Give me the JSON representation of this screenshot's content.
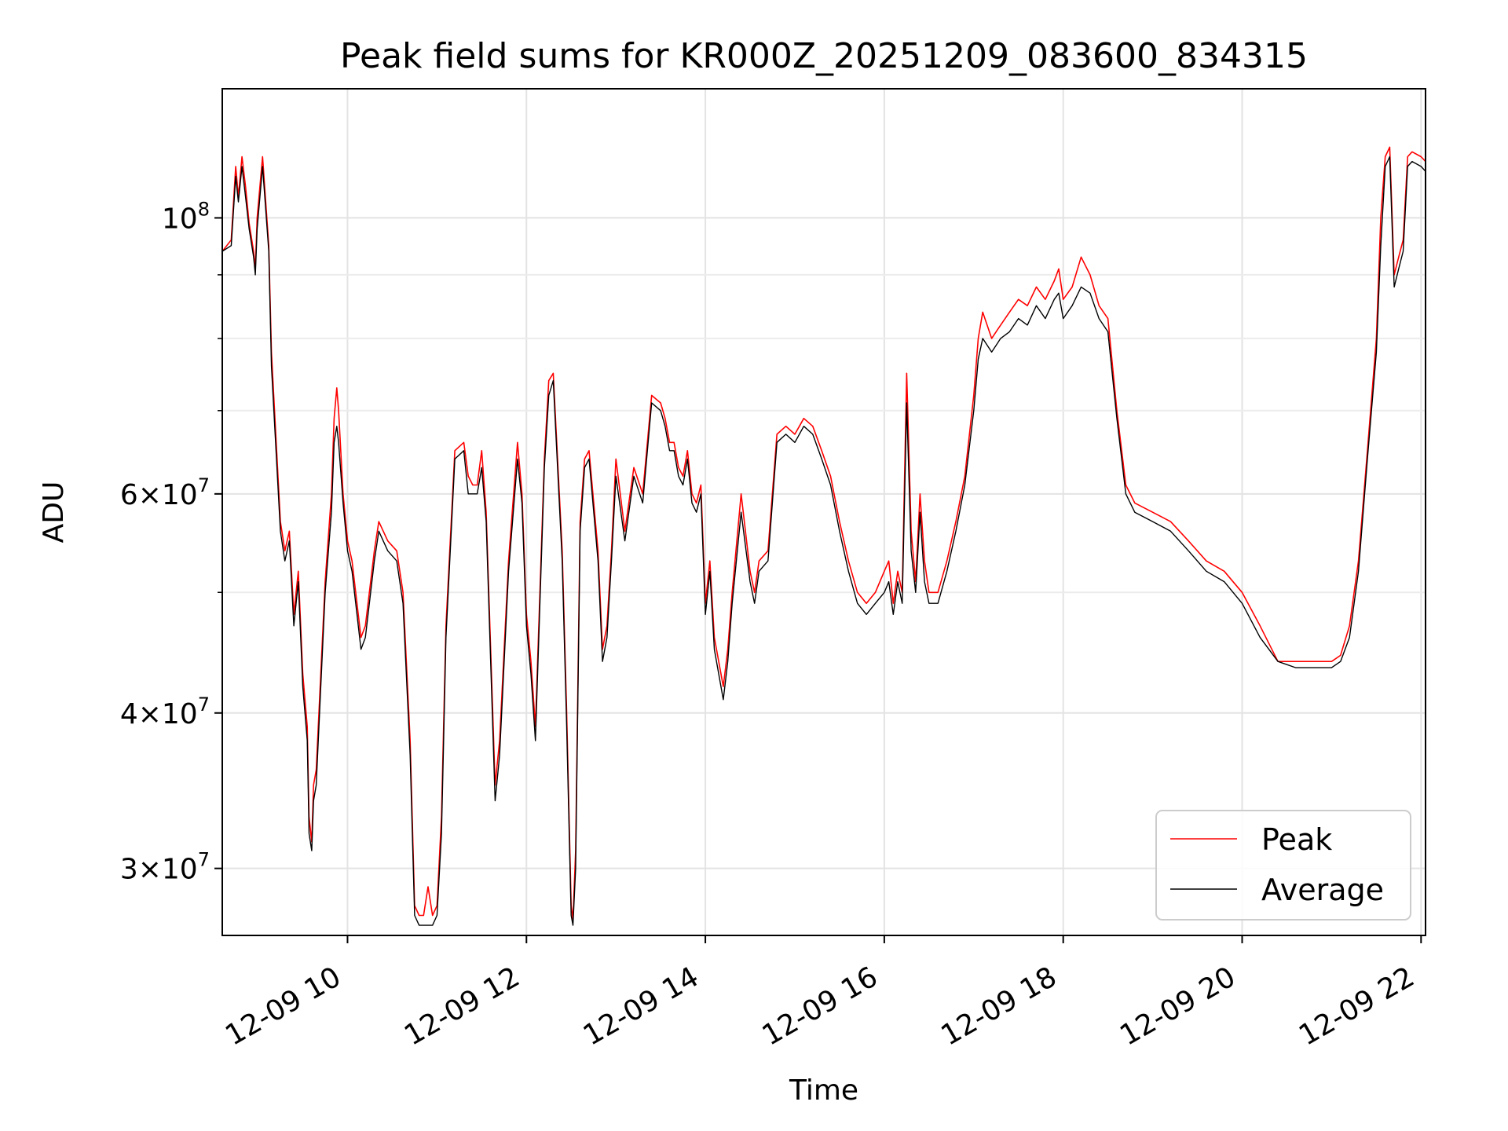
{
  "chart_data": {
    "type": "line",
    "title": "Peak field sums for KR000Z_20251209_083600_834315",
    "xlabel": "Time",
    "ylabel": "ADU",
    "x_unit": "hours (of day 2025-12-09)",
    "xlim": [
      8.6,
      22.05
    ],
    "ylim": [
      26500000,
      127000000
    ],
    "y_scale": "log",
    "grid": true,
    "legend_position": "lower right",
    "x_ticks": [
      {
        "value": 10,
        "label": "12-09 10"
      },
      {
        "value": 12,
        "label": "12-09 12"
      },
      {
        "value": 14,
        "label": "12-09 14"
      },
      {
        "value": 16,
        "label": "12-09 16"
      },
      {
        "value": 18,
        "label": "12-09 18"
      },
      {
        "value": 20,
        "label": "12-09 20"
      },
      {
        "value": 22,
        "label": "12-09 22"
      }
    ],
    "y_major_ticks": [
      {
        "value": 30000000,
        "base": "3",
        "exp": "7"
      },
      {
        "value": 40000000,
        "base": "4",
        "exp": "7"
      },
      {
        "value": 60000000,
        "base": "6",
        "exp": "7"
      },
      {
        "value": 100000000,
        "base": "",
        "exp": "8"
      }
    ],
    "y_minor_grid": [
      50000000,
      70000000,
      80000000,
      90000000
    ],
    "series": [
      {
        "name": "Peak",
        "color": "#ff0000",
        "x": [
          8.6,
          8.7,
          8.75,
          8.78,
          8.82,
          8.86,
          8.9,
          8.95,
          8.97,
          8.99,
          9.05,
          9.12,
          9.15,
          9.25,
          9.3,
          9.35,
          9.4,
          9.45,
          9.5,
          9.55,
          9.57,
          9.6,
          9.62,
          9.65,
          9.75,
          9.82,
          9.85,
          9.88,
          9.9,
          9.95,
          10.0,
          10.05,
          10.15,
          10.2,
          10.3,
          10.35,
          10.45,
          10.55,
          10.62,
          10.7,
          10.75,
          10.8,
          10.85,
          10.9,
          10.95,
          11.0,
          11.05,
          11.1,
          11.2,
          11.3,
          11.35,
          11.4,
          11.45,
          11.5,
          11.55,
          11.6,
          11.65,
          11.7,
          11.8,
          11.9,
          11.95,
          12.0,
          12.05,
          12.1,
          12.2,
          12.25,
          12.3,
          12.4,
          12.45,
          12.5,
          12.52,
          12.55,
          12.6,
          12.65,
          12.7,
          12.8,
          12.85,
          12.9,
          12.95,
          13.0,
          13.1,
          13.2,
          13.3,
          13.4,
          13.5,
          13.55,
          13.6,
          13.65,
          13.7,
          13.75,
          13.8,
          13.85,
          13.9,
          13.95,
          14.0,
          14.05,
          14.1,
          14.2,
          14.25,
          14.3,
          14.4,
          14.5,
          14.55,
          14.6,
          14.7,
          14.8,
          14.9,
          15.0,
          15.1,
          15.2,
          15.3,
          15.4,
          15.5,
          15.6,
          15.7,
          15.8,
          15.9,
          16.0,
          16.05,
          16.1,
          16.15,
          16.2,
          16.25,
          16.3,
          16.35,
          16.4,
          16.45,
          16.5,
          16.6,
          16.7,
          16.8,
          16.9,
          17.0,
          17.05,
          17.1,
          17.2,
          17.3,
          17.4,
          17.5,
          17.6,
          17.7,
          17.8,
          17.9,
          17.95,
          18.0,
          18.1,
          18.2,
          18.3,
          18.4,
          18.5,
          18.6,
          18.7,
          18.8,
          19.0,
          19.2,
          19.4,
          19.6,
          19.8,
          20.0,
          20.2,
          20.4,
          20.6,
          20.8,
          21.0,
          21.1,
          21.2,
          21.3,
          21.4,
          21.5,
          21.55,
          21.6,
          21.65,
          21.7,
          21.75,
          21.8,
          21.85,
          21.9,
          22.0,
          22.05
        ],
        "values": [
          94000000,
          96000000,
          110000000,
          104000000,
          112000000,
          106000000,
          99000000,
          94000000,
          91000000,
          100000000,
          112000000,
          95000000,
          78000000,
          57000000,
          54000000,
          56000000,
          48000000,
          52000000,
          43000000,
          39000000,
          33000000,
          31500000,
          35000000,
          36000000,
          51000000,
          60000000,
          69000000,
          73000000,
          70000000,
          60000000,
          55000000,
          53000000,
          46000000,
          47000000,
          54000000,
          57000000,
          55000000,
          54000000,
          50000000,
          38000000,
          28000000,
          27500000,
          27500000,
          29000000,
          27500000,
          28000000,
          33000000,
          47000000,
          65000000,
          66000000,
          62000000,
          61000000,
          61000000,
          65000000,
          58000000,
          45000000,
          35000000,
          38000000,
          53000000,
          66000000,
          60000000,
          48000000,
          44000000,
          39000000,
          64000000,
          74000000,
          75000000,
          54000000,
          40000000,
          28000000,
          27300000,
          31000000,
          57000000,
          64000000,
          65000000,
          54000000,
          45000000,
          47000000,
          54000000,
          64000000,
          56000000,
          63000000,
          60000000,
          72000000,
          71000000,
          69000000,
          66000000,
          66000000,
          63000000,
          62000000,
          65000000,
          60000000,
          59000000,
          61000000,
          49000000,
          53000000,
          46000000,
          42000000,
          45000000,
          50000000,
          60000000,
          52000000,
          50000000,
          53000000,
          54000000,
          67000000,
          68000000,
          67000000,
          69000000,
          68000000,
          65000000,
          62000000,
          57000000,
          53000000,
          50000000,
          49000000,
          50000000,
          52000000,
          53000000,
          49000000,
          52000000,
          50000000,
          75000000,
          56000000,
          51000000,
          60000000,
          53000000,
          50000000,
          50000000,
          53000000,
          57000000,
          62000000,
          72000000,
          80000000,
          84000000,
          80000000,
          82000000,
          84000000,
          86000000,
          85000000,
          88000000,
          86000000,
          89000000,
          91000000,
          86000000,
          88000000,
          93000000,
          90000000,
          85000000,
          83000000,
          70000000,
          61000000,
          59000000,
          58000000,
          57000000,
          55000000,
          53000000,
          52000000,
          50000000,
          47000000,
          44000000,
          44000000,
          44000000,
          44000000,
          44500000,
          47000000,
          53000000,
          65000000,
          80000000,
          100000000,
          112000000,
          114000000,
          90000000,
          93000000,
          96000000,
          112000000,
          113000000,
          112000000,
          111000000
        ]
      },
      {
        "name": "Average",
        "color": "#000000",
        "x": [
          8.6,
          8.7,
          8.75,
          8.78,
          8.82,
          8.86,
          8.9,
          8.95,
          8.97,
          8.99,
          9.05,
          9.12,
          9.15,
          9.25,
          9.3,
          9.35,
          9.4,
          9.45,
          9.5,
          9.55,
          9.57,
          9.6,
          9.62,
          9.65,
          9.75,
          9.82,
          9.85,
          9.88,
          9.9,
          9.95,
          10.0,
          10.05,
          10.15,
          10.2,
          10.3,
          10.35,
          10.45,
          10.55,
          10.62,
          10.7,
          10.75,
          10.8,
          10.85,
          10.9,
          10.95,
          11.0,
          11.05,
          11.1,
          11.2,
          11.3,
          11.35,
          11.4,
          11.45,
          11.5,
          11.55,
          11.6,
          11.65,
          11.7,
          11.8,
          11.9,
          11.95,
          12.0,
          12.05,
          12.1,
          12.2,
          12.25,
          12.3,
          12.4,
          12.45,
          12.5,
          12.52,
          12.55,
          12.6,
          12.65,
          12.7,
          12.8,
          12.85,
          12.9,
          12.95,
          13.0,
          13.1,
          13.2,
          13.3,
          13.4,
          13.5,
          13.55,
          13.6,
          13.65,
          13.7,
          13.75,
          13.8,
          13.85,
          13.9,
          13.95,
          14.0,
          14.05,
          14.1,
          14.2,
          14.25,
          14.3,
          14.4,
          14.5,
          14.55,
          14.6,
          14.7,
          14.8,
          14.9,
          15.0,
          15.1,
          15.2,
          15.3,
          15.4,
          15.5,
          15.6,
          15.7,
          15.8,
          15.9,
          16.0,
          16.05,
          16.1,
          16.15,
          16.2,
          16.25,
          16.3,
          16.35,
          16.4,
          16.45,
          16.5,
          16.6,
          16.7,
          16.8,
          16.9,
          17.0,
          17.05,
          17.1,
          17.2,
          17.3,
          17.4,
          17.5,
          17.6,
          17.7,
          17.8,
          17.9,
          17.95,
          18.0,
          18.1,
          18.2,
          18.3,
          18.4,
          18.5,
          18.6,
          18.7,
          18.8,
          19.0,
          19.2,
          19.4,
          19.6,
          19.8,
          20.0,
          20.2,
          20.4,
          20.6,
          20.8,
          21.0,
          21.1,
          21.2,
          21.3,
          21.4,
          21.5,
          21.55,
          21.6,
          21.65,
          21.7,
          21.75,
          21.8,
          21.85,
          21.9,
          22.0,
          22.05
        ],
        "values": [
          94000000,
          95000000,
          108000000,
          103000000,
          110000000,
          104000000,
          98000000,
          93000000,
          90000000,
          98000000,
          110000000,
          94000000,
          76000000,
          56000000,
          53000000,
          55000000,
          47000000,
          51000000,
          42000000,
          38000000,
          32000000,
          31000000,
          34000000,
          35000000,
          50000000,
          58000000,
          66000000,
          68000000,
          66000000,
          59000000,
          54000000,
          52000000,
          45000000,
          46000000,
          53000000,
          56000000,
          54000000,
          53000000,
          49000000,
          37000000,
          27500000,
          27000000,
          27000000,
          27000000,
          27000000,
          27500000,
          32000000,
          46000000,
          64000000,
          65000000,
          60000000,
          60000000,
          60000000,
          63000000,
          57000000,
          44000000,
          34000000,
          37000000,
          52000000,
          64000000,
          59000000,
          47000000,
          43000000,
          38000000,
          63000000,
          72000000,
          74000000,
          53000000,
          39000000,
          27500000,
          27000000,
          30000000,
          56000000,
          63000000,
          64000000,
          53000000,
          44000000,
          46000000,
          53000000,
          62000000,
          55000000,
          62000000,
          59000000,
          71000000,
          70000000,
          68000000,
          65000000,
          65000000,
          62000000,
          61000000,
          64000000,
          59000000,
          58000000,
          60000000,
          48000000,
          52000000,
          45000000,
          41000000,
          44000000,
          49000000,
          58000000,
          51000000,
          49000000,
          52000000,
          53000000,
          66000000,
          67000000,
          66000000,
          68000000,
          67000000,
          64000000,
          61000000,
          56000000,
          52000000,
          49000000,
          48000000,
          49000000,
          50000000,
          51000000,
          48000000,
          51000000,
          49000000,
          71000000,
          54000000,
          50000000,
          58000000,
          51000000,
          49000000,
          49000000,
          52000000,
          56000000,
          61000000,
          70000000,
          77000000,
          80000000,
          78000000,
          80000000,
          81000000,
          83000000,
          82000000,
          85000000,
          83000000,
          86000000,
          87000000,
          83000000,
          85000000,
          88000000,
          87000000,
          83000000,
          81000000,
          69000000,
          60000000,
          58000000,
          57000000,
          56000000,
          54000000,
          52000000,
          51000000,
          49000000,
          46000000,
          44000000,
          43500000,
          43500000,
          43500000,
          44000000,
          46000000,
          52000000,
          64000000,
          78000000,
          95000000,
          110000000,
          112000000,
          88000000,
          91000000,
          94000000,
          110000000,
          111000000,
          110000000,
          109000000
        ]
      }
    ]
  }
}
